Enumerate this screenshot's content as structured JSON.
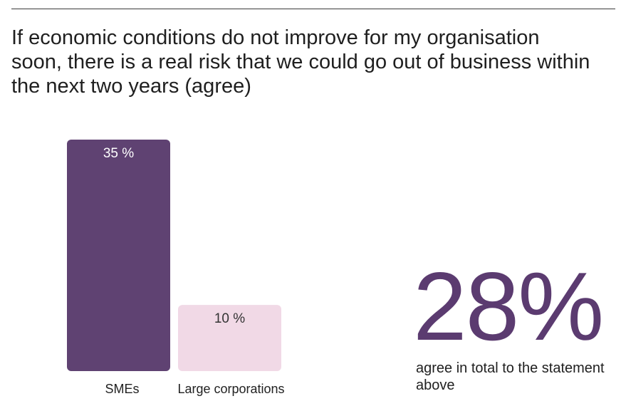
{
  "colors": {
    "accent": "#5b3b70",
    "bar_primary": "#5f4272",
    "bar_secondary": "#f1d9e6",
    "rule": "#3a3a3a"
  },
  "highlight": {
    "value": "28%",
    "caption": "agree in total to the statement above"
  },
  "chart_data": {
    "type": "bar",
    "title": "If economic conditions do not improve for my organisation soon, there is a real risk that we could go out of business within the next two years (agree)",
    "xlabel": "",
    "ylabel": "",
    "categories": [
      "SMEs",
      "Large corporations"
    ],
    "values": [
      35,
      10
    ],
    "value_labels": [
      "35 %",
      "10 %"
    ],
    "ylim": [
      0,
      35
    ],
    "grid": false
  }
}
